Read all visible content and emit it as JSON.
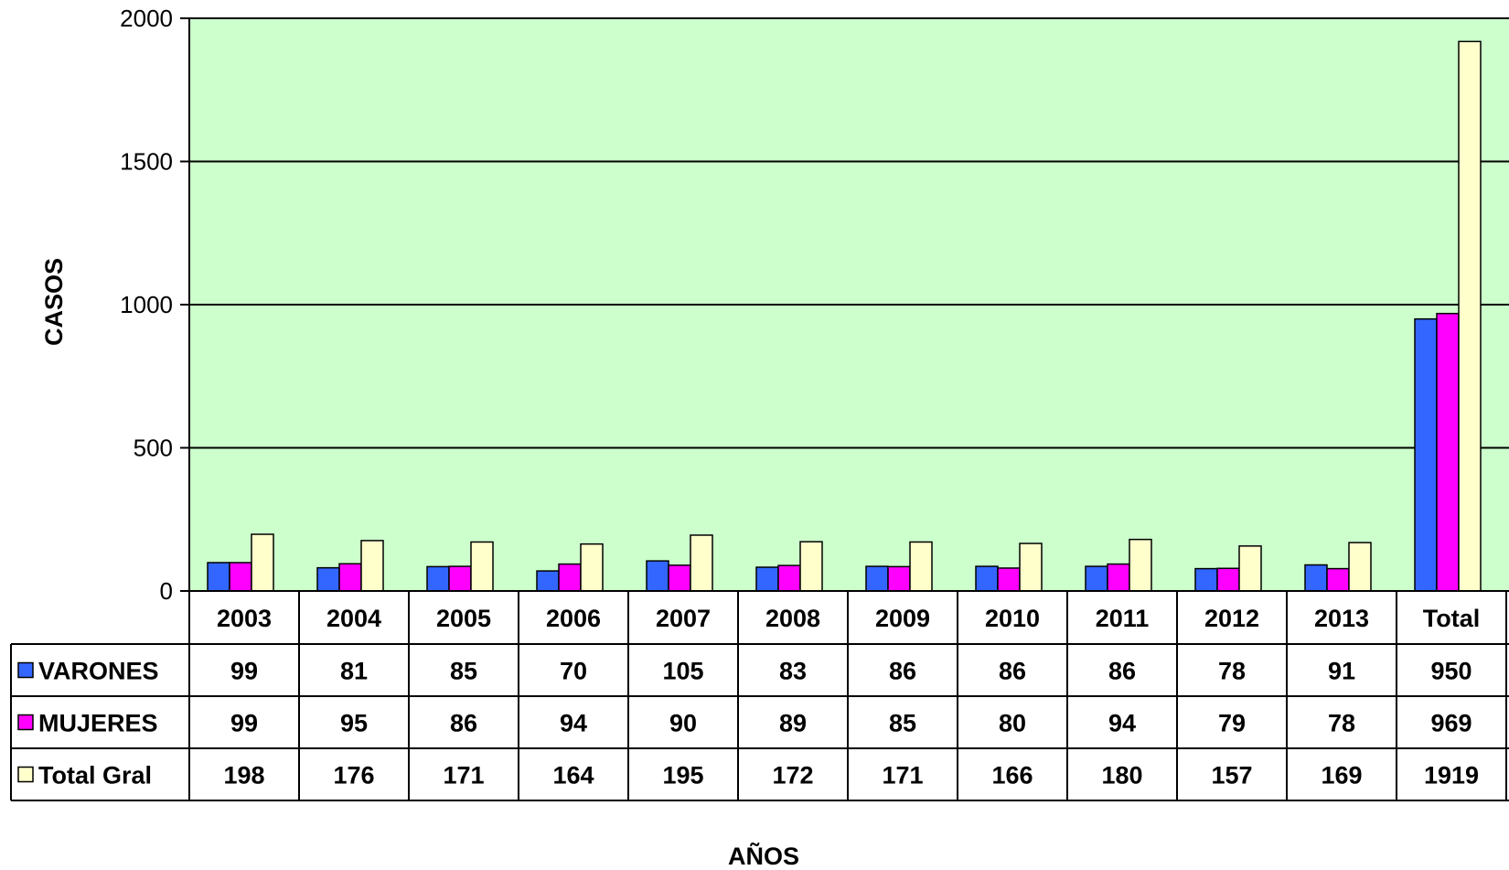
{
  "chart_data": {
    "type": "bar",
    "title": "",
    "xlabel": "AÑOS",
    "ylabel": "CASOS",
    "ylim": [
      0,
      2000
    ],
    "yticks": [
      0,
      500,
      1000,
      1500,
      2000
    ],
    "grid": true,
    "legend": "data-table-left",
    "plot_background": "#CCFFCC",
    "categories": [
      "2003",
      "2004",
      "2005",
      "2006",
      "2007",
      "2008",
      "2009",
      "2010",
      "2011",
      "2012",
      "2013",
      "Total"
    ],
    "series": [
      {
        "name": "VARONES",
        "color": "#3366FF",
        "values": [
          99,
          81,
          85,
          70,
          105,
          83,
          86,
          86,
          86,
          78,
          91,
          950
        ]
      },
      {
        "name": "MUJERES",
        "color": "#FF00FF",
        "values": [
          99,
          95,
          86,
          94,
          90,
          89,
          85,
          80,
          94,
          79,
          78,
          969
        ]
      },
      {
        "name": "Total Gral",
        "color": "#FFFFCC",
        "values": [
          198,
          176,
          171,
          164,
          195,
          172,
          171,
          166,
          180,
          157,
          169,
          1919
        ]
      }
    ]
  }
}
